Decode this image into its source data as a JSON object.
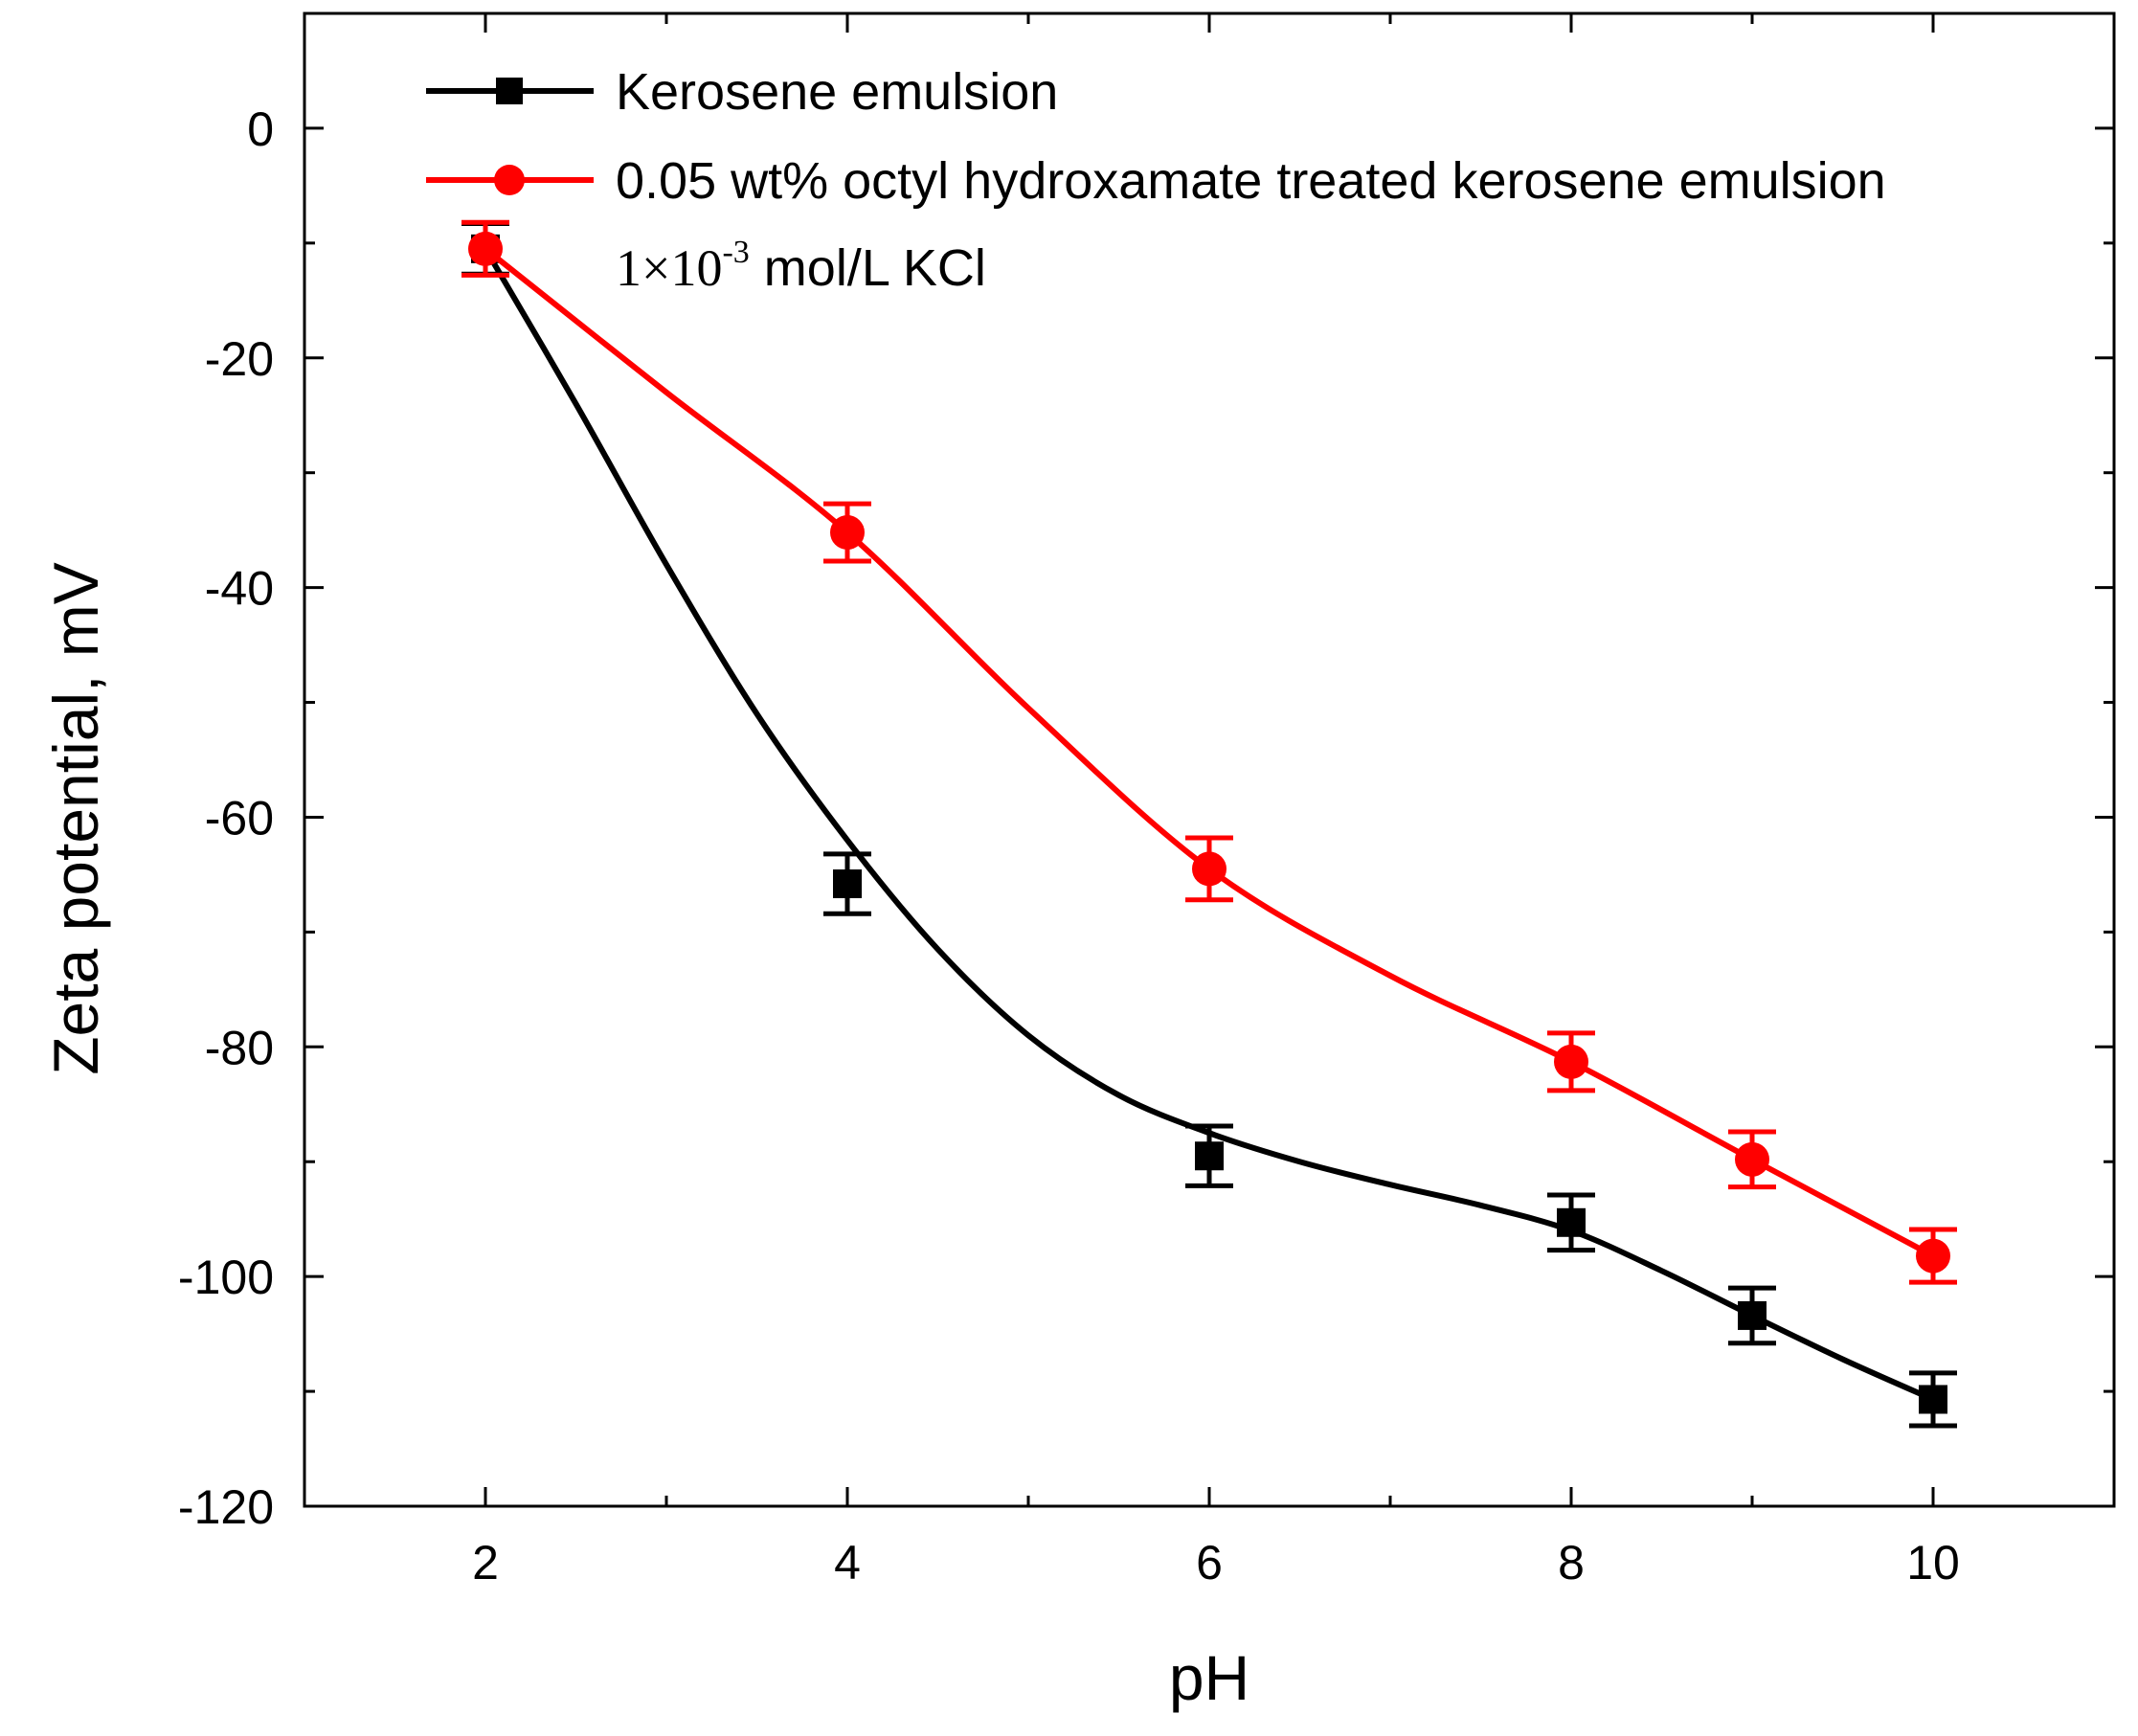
{
  "chart_data": {
    "type": "line",
    "xlabel": "pH",
    "ylabel": "Zeta potential, mV",
    "xlim": [
      1,
      11
    ],
    "ylim": [
      -120,
      10
    ],
    "x_ticks": [
      2,
      4,
      6,
      8,
      10
    ],
    "x_tick_labels": [
      "2",
      "4",
      "6",
      "8",
      "10"
    ],
    "y_ticks": [
      0,
      -20,
      -40,
      -60,
      -80,
      -100,
      -120
    ],
    "y_tick_labels": [
      "0",
      "-20",
      "-40",
      "-60",
      "-80",
      "-100",
      "-120"
    ],
    "legend_position": "top-left",
    "series": [
      {
        "name": "Kerosene emulsion",
        "color": "#000000",
        "marker": "square",
        "x": [
          2,
          4,
          6,
          8,
          9,
          10
        ],
        "y": [
          -10.5,
          -65.8,
          -89.5,
          -95.3,
          -103.4,
          -110.7
        ],
        "err": [
          2.2,
          2.6,
          2.6,
          2.4,
          2.4,
          2.3
        ],
        "fit_curve": [
          [
            2,
            -10.5
          ],
          [
            2.5,
            -24
          ],
          [
            3,
            -38
          ],
          [
            3.5,
            -51
          ],
          [
            4,
            -62
          ],
          [
            4.5,
            -71.5
          ],
          [
            5,
            -79
          ],
          [
            5.5,
            -84.2
          ],
          [
            6,
            -87.5
          ],
          [
            6.5,
            -90
          ],
          [
            7,
            -92
          ],
          [
            7.5,
            -93.8
          ],
          [
            8,
            -96
          ],
          [
            8.5,
            -99.5
          ],
          [
            9,
            -103.4
          ],
          [
            9.5,
            -107.2
          ],
          [
            10,
            -110.7
          ]
        ]
      },
      {
        "name": "0.05 wt% octyl hydroxamate treated kerosene emulsion",
        "color": "#ff0000",
        "marker": "circle",
        "x": [
          2,
          4,
          6,
          8,
          9,
          10
        ],
        "y": [
          -10.5,
          -35.2,
          -64.5,
          -81.3,
          -89.8,
          -98.2
        ],
        "err": [
          2.3,
          2.5,
          2.7,
          2.5,
          2.4,
          2.3
        ],
        "fit_curve": [
          [
            2,
            -10.5
          ],
          [
            3,
            -23
          ],
          [
            4,
            -35.2
          ],
          [
            5,
            -50.5
          ],
          [
            6,
            -64.5
          ],
          [
            7,
            -73.8
          ],
          [
            8,
            -81.3
          ],
          [
            9,
            -89.8
          ],
          [
            10,
            -98.2
          ]
        ]
      }
    ],
    "annotation": {
      "prefix": "1×10",
      "superscript": "-3",
      "suffix": " mol/L KCl"
    }
  }
}
